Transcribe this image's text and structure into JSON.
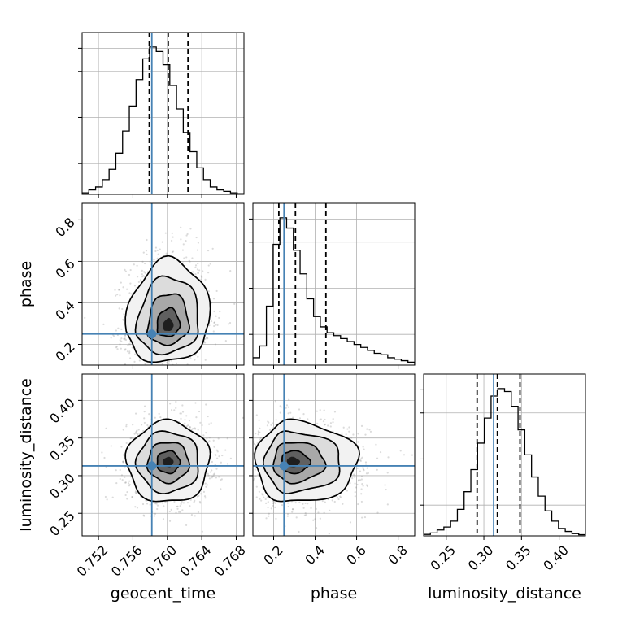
{
  "chart_data": {
    "type": "corner",
    "parameters": [
      "geocent_time",
      "phase",
      "luminosity_distance"
    ],
    "labels": {
      "geocent_time": "geocent_time",
      "phase": "phase",
      "luminosity_distance": "luminosity_distance"
    },
    "truth": {
      "geocent_time": 0.7582,
      "phase": 0.25,
      "luminosity_distance": 0.313
    },
    "quantiles": {
      "geocent_time": [
        0.7579,
        0.7601,
        0.7624
      ],
      "phase": [
        0.225,
        0.305,
        0.452
      ],
      "luminosity_distance": [
        0.291,
        0.318,
        0.348
      ]
    },
    "ranges": {
      "geocent_time": [
        0.7501,
        0.7689
      ],
      "phase": [
        0.1,
        0.88
      ],
      "luminosity_distance": [
        0.22,
        0.435
      ]
    },
    "ticks": {
      "geocent_time": {
        "values": [
          0.752,
          0.756,
          0.76,
          0.764,
          0.768
        ],
        "labels": [
          "0.752",
          "0.756",
          "0.760",
          "0.764",
          "0.768"
        ]
      },
      "phase": {
        "values": [
          0.2,
          0.4,
          0.6,
          0.8
        ],
        "labels": [
          "0.2",
          "0.4",
          "0.6",
          "0.8"
        ]
      },
      "luminosity_distance": {
        "values": [
          0.25,
          0.3,
          0.35,
          0.4
        ],
        "labels": [
          "0.25",
          "0.30",
          "0.35",
          "0.40"
        ]
      }
    },
    "histograms": {
      "geocent_time": [
        0.01,
        0.03,
        0.05,
        0.1,
        0.17,
        0.28,
        0.43,
        0.6,
        0.78,
        0.92,
        1.0,
        0.97,
        0.88,
        0.74,
        0.58,
        0.42,
        0.29,
        0.18,
        0.1,
        0.05,
        0.03,
        0.02,
        0.01,
        0.005
      ],
      "phase": [
        0.05,
        0.13,
        0.4,
        0.82,
        1.0,
        0.93,
        0.78,
        0.62,
        0.45,
        0.33,
        0.26,
        0.22,
        0.2,
        0.18,
        0.16,
        0.14,
        0.12,
        0.1,
        0.08,
        0.07,
        0.05,
        0.04,
        0.03,
        0.02
      ],
      "luminosity_distance": [
        0.01,
        0.02,
        0.04,
        0.06,
        0.1,
        0.18,
        0.3,
        0.45,
        0.63,
        0.8,
        0.95,
        1.0,
        0.98,
        0.88,
        0.72,
        0.55,
        0.4,
        0.27,
        0.17,
        0.1,
        0.05,
        0.03,
        0.015,
        0.008
      ]
    },
    "pairs": [
      {
        "x": "geocent_time",
        "y": "phase",
        "mean": [
          0.7601,
          0.285
        ],
        "sd": [
          0.0024,
          0.085
        ],
        "skew_y": true,
        "rho": 0.12
      },
      {
        "x": "geocent_time",
        "y": "luminosity_distance",
        "mean": [
          0.7601,
          0.318
        ],
        "sd": [
          0.0024,
          0.027
        ],
        "skew_y": false,
        "rho": 0.0
      },
      {
        "x": "phase",
        "y": "luminosity_distance",
        "mean": [
          0.285,
          0.318
        ],
        "sd": [
          0.085,
          0.027
        ],
        "skew_x": true,
        "rho": 0.0
      }
    ],
    "grid": true,
    "colors": {
      "truth": "#4682b4",
      "contour": "#000000",
      "grid": "#b0b0b0",
      "scatter": "#7f7f7f"
    }
  }
}
